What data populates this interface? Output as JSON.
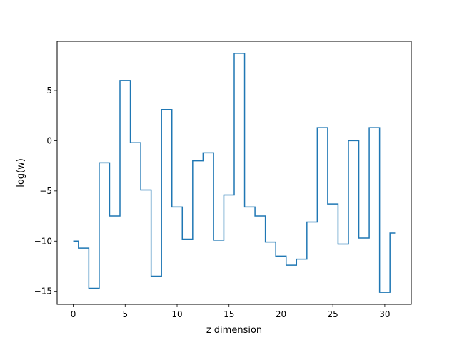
{
  "chart_data": {
    "type": "line",
    "drawstyle": "steps-mid",
    "title": "",
    "xlabel": "z dimension",
    "ylabel": "log(w)",
    "xlim": [
      -1.55,
      32.55
    ],
    "ylim": [
      -16.3,
      9.9
    ],
    "xticks": [
      0,
      5,
      10,
      15,
      20,
      25,
      30
    ],
    "yticks": [
      -15,
      -10,
      -5,
      0,
      5
    ],
    "ytick_labels": [
      "−15",
      "−10",
      "−5",
      "0",
      "5"
    ],
    "grid": false,
    "legend": "none",
    "series": [
      {
        "color": "#1f77b4",
        "x": [
          0,
          1,
          2,
          3,
          4,
          5,
          6,
          7,
          8,
          9,
          10,
          11,
          12,
          13,
          14,
          15,
          16,
          17,
          18,
          19,
          20,
          21,
          22,
          23,
          24,
          25,
          26,
          27,
          28,
          29,
          30,
          31
        ],
        "y": [
          -10.0,
          -10.7,
          -14.7,
          -2.2,
          -7.5,
          6.0,
          -0.2,
          -4.9,
          -13.5,
          3.1,
          -6.6,
          -9.8,
          -2.0,
          -1.2,
          -9.9,
          -5.4,
          8.7,
          -6.6,
          -7.5,
          -10.1,
          -11.5,
          -12.4,
          -11.8,
          -8.1,
          1.3,
          -6.3,
          -10.3,
          0.0,
          -9.7,
          1.3,
          -15.1,
          -9.2
        ]
      }
    ]
  }
}
